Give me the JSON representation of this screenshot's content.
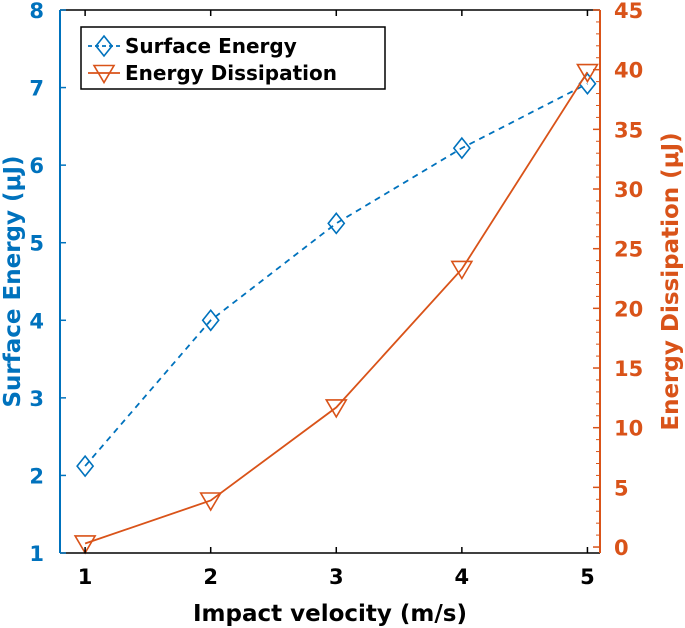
{
  "colors": {
    "left_axis": "#0072BD",
    "right_axis": "#D95319",
    "frame": "#000000",
    "background": "#ffffff"
  },
  "chart_data": {
    "type": "line",
    "x": [
      1,
      2,
      3,
      4,
      5
    ],
    "xlim": [
      0.8,
      5.1
    ],
    "xticks": [
      1,
      2,
      3,
      4,
      5
    ],
    "xlabel": "Impact velocity (m/s)",
    "ylabel_left": "Surface Energy (μJ)",
    "ylim_left": [
      1,
      8
    ],
    "yticks_left": [
      1,
      2,
      3,
      4,
      5,
      6,
      7,
      8
    ],
    "ylabel_right": "Energy Dissipation (μJ)",
    "ylim_right": [
      -0.5,
      45
    ],
    "yticks_right": [
      0,
      5,
      10,
      15,
      20,
      25,
      30,
      35,
      40,
      45
    ],
    "grid": false,
    "legend_position": "top-left",
    "series": [
      {
        "name": "Surface Energy",
        "axis": "left",
        "values": [
          2.12,
          4.0,
          5.25,
          6.22,
          7.05
        ],
        "line_style": "dashed",
        "marker": "diamond",
        "color": "#0072BD"
      },
      {
        "name": "Energy Dissipation",
        "axis": "right",
        "values": [
          0.3,
          3.9,
          11.7,
          23.3,
          39.8
        ],
        "line_style": "solid",
        "marker": "triangle-down",
        "color": "#D95319"
      }
    ]
  }
}
